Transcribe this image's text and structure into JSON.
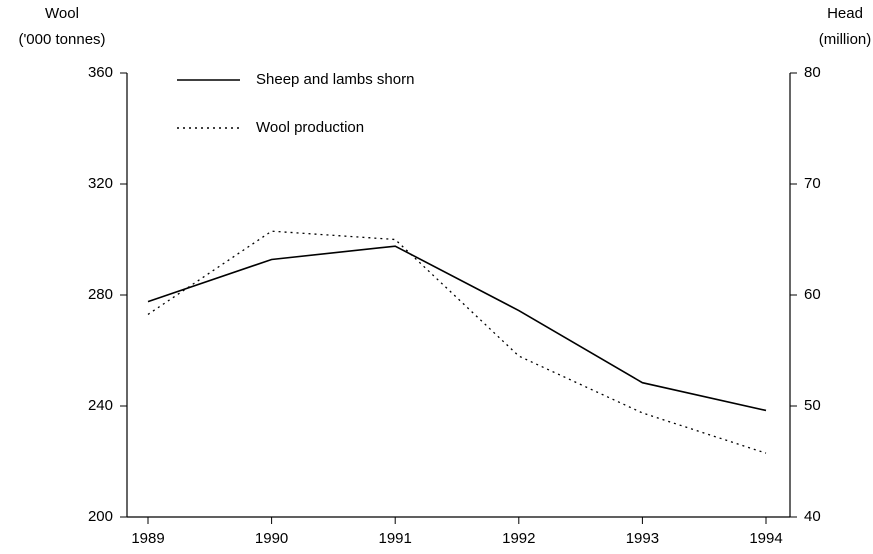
{
  "chart_data": {
    "type": "line",
    "ylabel": [
      "Wool",
      "('000 tonnes)"
    ],
    "y2label": [
      "Head",
      "(million)"
    ],
    "x": [
      1989,
      1990,
      1991,
      1992,
      1993,
      1994
    ],
    "xlim": [
      1989,
      1994
    ],
    "xticks": [
      1989,
      1990,
      1991,
      1992,
      1993,
      1994
    ],
    "ylim": [
      200,
      360
    ],
    "yticks": [
      200,
      240,
      280,
      320,
      360
    ],
    "y2lim": [
      40,
      80
    ],
    "y2ticks": [
      40,
      50,
      60,
      70,
      80
    ],
    "legend": "top-left",
    "series": [
      {
        "name": "Sheep and lambs shorn",
        "color": "#000000",
        "line_style": "solid",
        "axis": "y2",
        "values": [
          59.4,
          63.2,
          64.4,
          58.6,
          52.1,
          49.6
        ]
      },
      {
        "name": "Wool production",
        "color": "#000000",
        "line_style": "dotted",
        "values": [
          273,
          303,
          300,
          258,
          237.5,
          223
        ]
      }
    ]
  }
}
